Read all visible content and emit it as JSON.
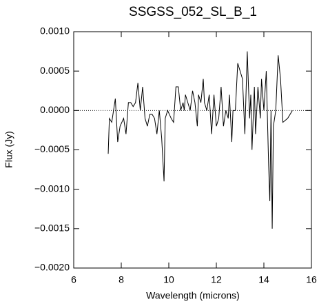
{
  "chart_data": {
    "type": "line",
    "title": "SSGSS_052_SL_B_1",
    "x_label": "Wavelength (microns)",
    "y_label": "Flux (Jy)",
    "color": "#000000",
    "zero_line": true,
    "xlim": [
      6,
      16
    ],
    "xticks": [
      6,
      8,
      10,
      12,
      14,
      16
    ],
    "ylim": [
      -0.002,
      0.001
    ],
    "yticks": [
      {
        "value": -0.002,
        "label": "−0.0020"
      },
      {
        "value": -0.0015,
        "label": "−0.0015"
      },
      {
        "value": -0.001,
        "label": "−0.0010"
      },
      {
        "value": -0.0005,
        "label": "−0.0005"
      },
      {
        "value": 0,
        "label": "0.0000"
      },
      {
        "value": 0.0005,
        "label": "0.0005"
      },
      {
        "value": 0.001,
        "label": "0.0010"
      }
    ],
    "x": [
      7.45,
      7.5,
      7.6,
      7.75,
      7.85,
      7.95,
      8.1,
      8.2,
      8.3,
      8.4,
      8.5,
      8.6,
      8.7,
      8.8,
      8.9,
      9.0,
      9.1,
      9.2,
      9.3,
      9.4,
      9.5,
      9.6,
      9.7,
      9.8,
      9.85,
      9.95,
      10.1,
      10.2,
      10.3,
      10.4,
      10.5,
      10.6,
      10.65,
      10.7,
      10.8,
      10.9,
      11.0,
      11.1,
      11.2,
      11.25,
      11.35,
      11.45,
      11.5,
      11.6,
      11.7,
      11.8,
      11.9,
      12.0,
      12.1,
      12.2,
      12.3,
      12.4,
      12.5,
      12.55,
      12.65,
      12.7,
      12.8,
      12.9,
      13.1,
      13.2,
      13.3,
      13.4,
      13.45,
      13.5,
      13.6,
      13.65,
      13.75,
      13.85,
      13.9,
      14.0,
      14.1,
      14.2,
      14.25,
      14.3,
      14.35,
      14.4,
      14.5,
      14.6,
      14.7,
      14.8,
      15.0,
      15.2
    ],
    "values": [
      -0.00055,
      -0.0001,
      -0.00015,
      0.00015,
      -0.0004,
      -0.0002,
      -0.0001,
      -0.0003,
      0.0001,
      0.0001,
      5e-05,
      0.0001,
      0.00035,
      0.0,
      0.0003,
      -0.0001,
      -0.0002,
      -5e-05,
      -5e-05,
      -0.0001,
      -0.0003,
      0.0,
      -0.00035,
      -0.0009,
      -0.0001,
      0.0,
      -0.0001,
      -0.00015,
      0.0003,
      0.0003,
      0.0,
      0.0001,
      0.0,
      0.0002,
      0.0001,
      0.0,
      0.00025,
      0.0001,
      -0.0002,
      0.0002,
      0.0001,
      0.0004,
      0.0001,
      0.0,
      0.0002,
      -0.0003,
      0.0002,
      -0.0002,
      -0.0001,
      0.0003,
      -0.0002,
      0.0,
      -0.0001,
      0.0002,
      -0.0004,
      0.0,
      0.0,
      0.0006,
      0.0004,
      -0.0003,
      0.00075,
      -0.0001,
      0.0002,
      -0.0005,
      0.0003,
      -0.0003,
      0.0003,
      -0.0001,
      0.0004,
      0.0,
      0.0005,
      -0.0007,
      -0.00115,
      0.0,
      -0.0015,
      -0.0002,
      0.0,
      0.0007,
      0.0004,
      -0.00015,
      -0.0001,
      0.0
    ]
  }
}
